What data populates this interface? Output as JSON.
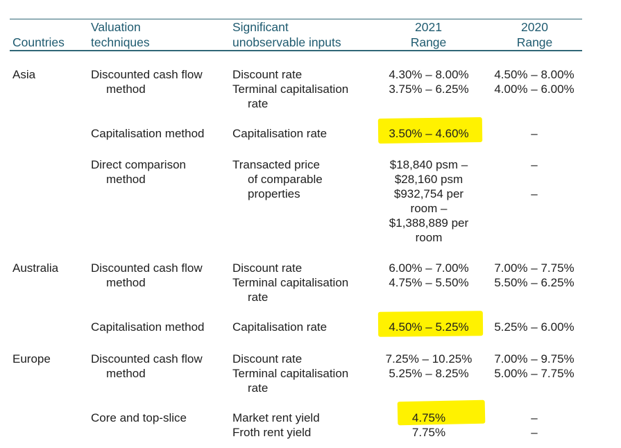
{
  "header": {
    "countries": "Countries",
    "valuation": [
      "Valuation",
      "techniques"
    ],
    "inputs": [
      "Significant",
      "unobservable inputs"
    ],
    "y2021": [
      "2021",
      "Range"
    ],
    "y2020": [
      "2020",
      "Range"
    ]
  },
  "rows": {
    "asia": {
      "country": "Asia",
      "dcf": {
        "technique": [
          "Discounted cash flow",
          "method"
        ],
        "inputs": [
          "Discount rate",
          "Terminal capitalisation",
          "rate"
        ],
        "r2021": [
          "4.30% – 8.00%",
          "3.75% – 6.25%"
        ],
        "r2020": [
          "4.50% – 8.00%",
          "4.00% – 6.00%"
        ]
      },
      "cap": {
        "technique": "Capitalisation method",
        "input": "Capitalisation rate",
        "r2021": "3.50% – 4.60%",
        "r2020": "–"
      },
      "direct": {
        "technique": [
          "Direct comparison",
          "method"
        ],
        "inputs": [
          "Transacted price",
          "of comparable",
          "properties"
        ],
        "r2021": [
          "$18,840 psm –",
          "$28,160 psm",
          "$932,754 per",
          "room –",
          "$1,388,889 per",
          "room"
        ],
        "r2020": [
          "–",
          "–"
        ]
      }
    },
    "australia": {
      "country": "Australia",
      "dcf": {
        "technique": [
          "Discounted cash flow",
          "method"
        ],
        "inputs": [
          "Discount rate",
          "Terminal capitalisation",
          "rate"
        ],
        "r2021": [
          "6.00% – 7.00%",
          "4.75% – 5.50%"
        ],
        "r2020": [
          "7.00% – 7.75%",
          "5.50% – 6.25%"
        ]
      },
      "cap": {
        "technique": "Capitalisation method",
        "input": "Capitalisation rate",
        "r2021": "4.50% – 5.25%",
        "r2020": "5.25% – 6.00%"
      }
    },
    "europe": {
      "country": "Europe",
      "dcf": {
        "technique": [
          "Discounted cash flow",
          "method"
        ],
        "inputs": [
          "Discount rate",
          "Terminal capitalisation",
          "rate"
        ],
        "r2021": [
          "7.25% – 10.25%",
          "5.25% – 8.25%"
        ],
        "r2020": [
          "7.00% – 9.75%",
          "5.00% – 7.75%"
        ]
      },
      "core": {
        "technique": "Core and top-slice",
        "inputs": [
          "Market rent yield",
          "Froth rent yield"
        ],
        "r2021": [
          "4.75%",
          "7.75%"
        ],
        "r2020": [
          "–",
          "–"
        ]
      }
    }
  },
  "colors": {
    "header_text": "#1e5a6f",
    "rule": "#2f6676",
    "highlight": "#fff200",
    "body_text": "#1e1e1e"
  }
}
